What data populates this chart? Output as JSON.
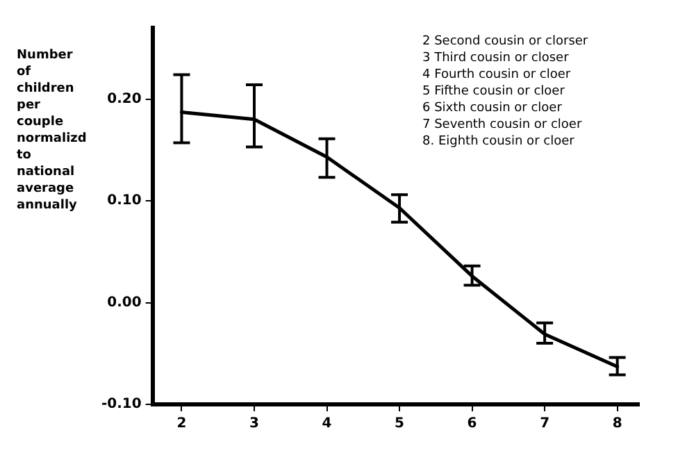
{
  "chart_data": {
    "type": "line",
    "ylabel": "Number of children per couple normalizd to national average annually",
    "annotations": [
      "2 Second cousin or clorser",
      "3 Third cousin or closer",
      "4 Fourth cousin or cloer",
      "5 Fifthe cousin or cloer",
      "6 Sixth cousin or cloer",
      "7 Seventh cousin or cloer",
      "8. Eighth cousin or cloer"
    ],
    "x": [
      2,
      3,
      4,
      5,
      6,
      7,
      8
    ],
    "series": [
      {
        "color": "#000000",
        "values": [
          0.187,
          0.18,
          0.143,
          0.093,
          0.026,
          -0.031,
          -0.063
        ],
        "errors": [
          [
            0.157,
            0.224
          ],
          [
            0.153,
            0.214
          ],
          [
            0.123,
            0.161
          ],
          [
            0.079,
            0.106
          ],
          [
            0.017,
            0.036
          ],
          [
            -0.04,
            -0.02
          ],
          [
            -0.071,
            -0.054
          ]
        ]
      }
    ],
    "xlim": [
      1.6,
      8.3
    ],
    "xticks": [
      2,
      3,
      4,
      5,
      6,
      7,
      8
    ],
    "ylim": [
      -0.1,
      0.27
    ],
    "yticks": [
      {
        "value": -0.1,
        "label": "-0.10"
      },
      {
        "value": 0,
        "label": "0.00"
      },
      {
        "value": 0.1,
        "label": "0.10"
      },
      {
        "value": 0.2,
        "label": "0.20"
      }
    ],
    "grid": false,
    "legend": false,
    "line_style": "solid"
  }
}
